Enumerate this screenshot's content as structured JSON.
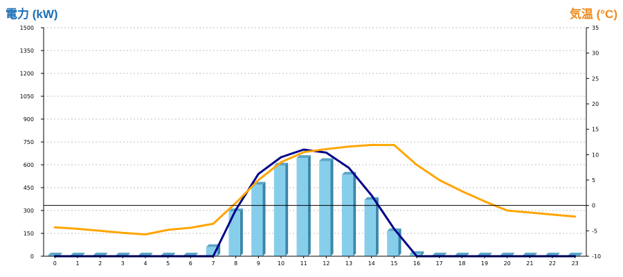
{
  "chart_data": {
    "type": "bar",
    "title": "",
    "left_axis_title": "電力 (kW)",
    "right_axis_title": "気温 (°C)",
    "categories": [
      "0",
      "1",
      "2",
      "3",
      "4",
      "5",
      "6",
      "7",
      "8",
      "9",
      "10",
      "11",
      "12",
      "13",
      "14",
      "15",
      "16",
      "17",
      "18",
      "19",
      "20",
      "21",
      "22",
      "23"
    ],
    "y_left": {
      "min": 0,
      "max": 1500,
      "ticks": [
        0,
        150,
        300,
        450,
        600,
        750,
        900,
        1050,
        1200,
        1350,
        1500
      ]
    },
    "y_right": {
      "min": -10,
      "max": 35,
      "ticks": [
        -10,
        -5,
        0,
        5,
        10,
        15,
        20,
        25,
        30,
        35
      ]
    },
    "grid": true,
    "series": [
      {
        "type": "bar",
        "axis": "left",
        "color": "#87ceeb",
        "values": [
          5,
          5,
          5,
          5,
          5,
          5,
          5,
          60,
          295,
          470,
          595,
          645,
          625,
          535,
          370,
          165,
          15,
          5,
          5,
          5,
          5,
          5,
          5,
          5
        ]
      },
      {
        "type": "line",
        "axis": "left",
        "color": "#00008b",
        "values": [
          0,
          0,
          0,
          0,
          0,
          0,
          0,
          0,
          305,
          540,
          650,
          700,
          680,
          580,
          400,
          180,
          0,
          0,
          0,
          0,
          0,
          0,
          0,
          0
        ]
      },
      {
        "type": "line",
        "axis": "right",
        "color": "#ffa500",
        "values": [
          -4.3,
          -4.6,
          -5.0,
          -5.4,
          -5.7,
          -4.8,
          -4.4,
          -3.6,
          0.5,
          5.0,
          8.5,
          10.5,
          11.1,
          11.6,
          11.9,
          11.9,
          8.0,
          5.0,
          2.8,
          0.8,
          -1.0,
          -1.4,
          -1.8,
          -2.2
        ]
      }
    ]
  }
}
